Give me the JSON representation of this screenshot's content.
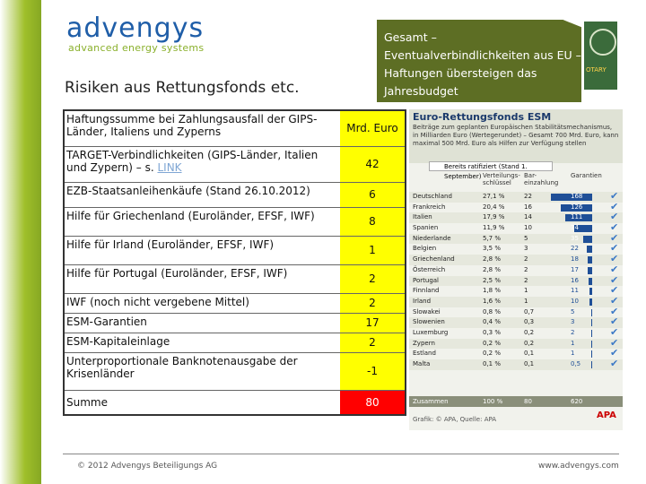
{
  "logo": {
    "name": "advengys",
    "tagline": "advanced energy systems"
  },
  "title": "Risiken aus Rettungsfonds etc.",
  "callout": "Gesamt – Eventualverbindlichkeiten aus EU – Haftungen übersteigen das Jahresbudget",
  "seal_text": "OTARY",
  "risk_table": [
    {
      "label": "Haftungssumme bei Zahlungsausfall der GIPS-Länder, Italiens und Zyperns",
      "value": "Mrd. Euro"
    },
    {
      "label": "TARGET-Verbindlichkeiten (GIPS-Länder, Italien und Zypern) – s. ",
      "link": "LINK",
      "value": "42"
    },
    {
      "label": "EZB-Staatsanleihenkäufe (Stand 26.10.2012)",
      "value": "6"
    },
    {
      "label": "Hilfe für Griechenland (Euroländer, EFSF, IWF)",
      "value": "8"
    },
    {
      "label": "Hilfe für Irland (Euroländer, EFSF, IWF)",
      "value": "1"
    },
    {
      "label": "Hilfe für Portugal (Euroländer, EFSF, IWF)",
      "value": "2"
    },
    {
      "label": "IWF (noch nicht vergebene Mittel)",
      "value": "2"
    },
    {
      "label": "ESM-Garantien",
      "value": "17"
    },
    {
      "label": "ESM-Kapitaleinlage",
      "value": "2"
    },
    {
      "label": "Unterproportionale Banknotenausgabe der Krisenländer",
      "value": "-1"
    }
  ],
  "risk_sum": {
    "label": "Summe",
    "value": "80"
  },
  "esm": {
    "title": "Euro-Rettungsfonds ESM",
    "desc": "Beiträge zum geplanten Europäischen Stabilitätsmechanismus, in Milliarden Euro (Wertegerundet) – Gesamt 700 Mrd. Euro, kann maximal 500 Mrd. Euro als Hilfen zur Verfügung stellen",
    "badge": "Bereits ratifiziert (Stand 1. September)",
    "col_key": "Verteilungs-schlüssel",
    "col_bar": "Bar-einzahlung",
    "col_gar": "Garantien",
    "rows": [
      {
        "country": "Deutschland",
        "key": "27,1 %",
        "bar": "22",
        "gar": "168",
        "ok": "✔"
      },
      {
        "country": "Frankreich",
        "key": "20,4 %",
        "bar": "16",
        "gar": "126",
        "ok": "✔"
      },
      {
        "country": "Italien",
        "key": "17,9 %",
        "bar": "14",
        "gar": "111",
        "ok": "✔"
      },
      {
        "country": "Spanien",
        "key": "11,9 %",
        "bar": "10",
        "gar": "74",
        "ok": "✔"
      },
      {
        "country": "Niederlande",
        "key": "5,7 %",
        "bar": "5",
        "gar": "35",
        "ok": "✔"
      },
      {
        "country": "Belgien",
        "key": "3,5 %",
        "bar": "3",
        "gar": "22",
        "ok": "✔"
      },
      {
        "country": "Griechenland",
        "key": "2,8 %",
        "bar": "2",
        "gar": "18",
        "ok": "✔"
      },
      {
        "country": "Österreich",
        "key": "2,8 %",
        "bar": "2",
        "gar": "17",
        "ok": "✔"
      },
      {
        "country": "Portugal",
        "key": "2,5 %",
        "bar": "2",
        "gar": "16",
        "ok": "✔"
      },
      {
        "country": "Finnland",
        "key": "1,8 %",
        "bar": "1",
        "gar": "11",
        "ok": "✔"
      },
      {
        "country": "Irland",
        "key": "1,6 %",
        "bar": "1",
        "gar": "10",
        "ok": "✔"
      },
      {
        "country": "Slowakei",
        "key": "0,8 %",
        "bar": "0,7",
        "gar": "5",
        "ok": "✔"
      },
      {
        "country": "Slowenien",
        "key": "0,4 %",
        "bar": "0,3",
        "gar": "3",
        "ok": "✔"
      },
      {
        "country": "Luxemburg",
        "key": "0,3 %",
        "bar": "0,2",
        "gar": "2",
        "ok": "✔"
      },
      {
        "country": "Zypern",
        "key": "0,2 %",
        "bar": "0,2",
        "gar": "1",
        "ok": "✔"
      },
      {
        "country": "Estland",
        "key": "0,2 %",
        "bar": "0,1",
        "gar": "1",
        "ok": "✔"
      },
      {
        "country": "Malta",
        "key": "0,1 %",
        "bar": "0,1",
        "gar": "0,5",
        "ok": "✔"
      }
    ],
    "sum": {
      "label": "Zusammen",
      "key": "100 %",
      "bar": "80",
      "gar": "620"
    },
    "source": "Grafik: © APA, Quelle: APA",
    "brand": "APA"
  },
  "footer": {
    "copyright": "© 2012 Advengys Beteiligungs AG",
    "website": "www.advengys.com"
  },
  "colors": {
    "green": "#9fbf2a",
    "blue": "#1f5ea8",
    "yellow": "#ffff00",
    "red": "#ff0000",
    "olive": "#5d6e24"
  }
}
